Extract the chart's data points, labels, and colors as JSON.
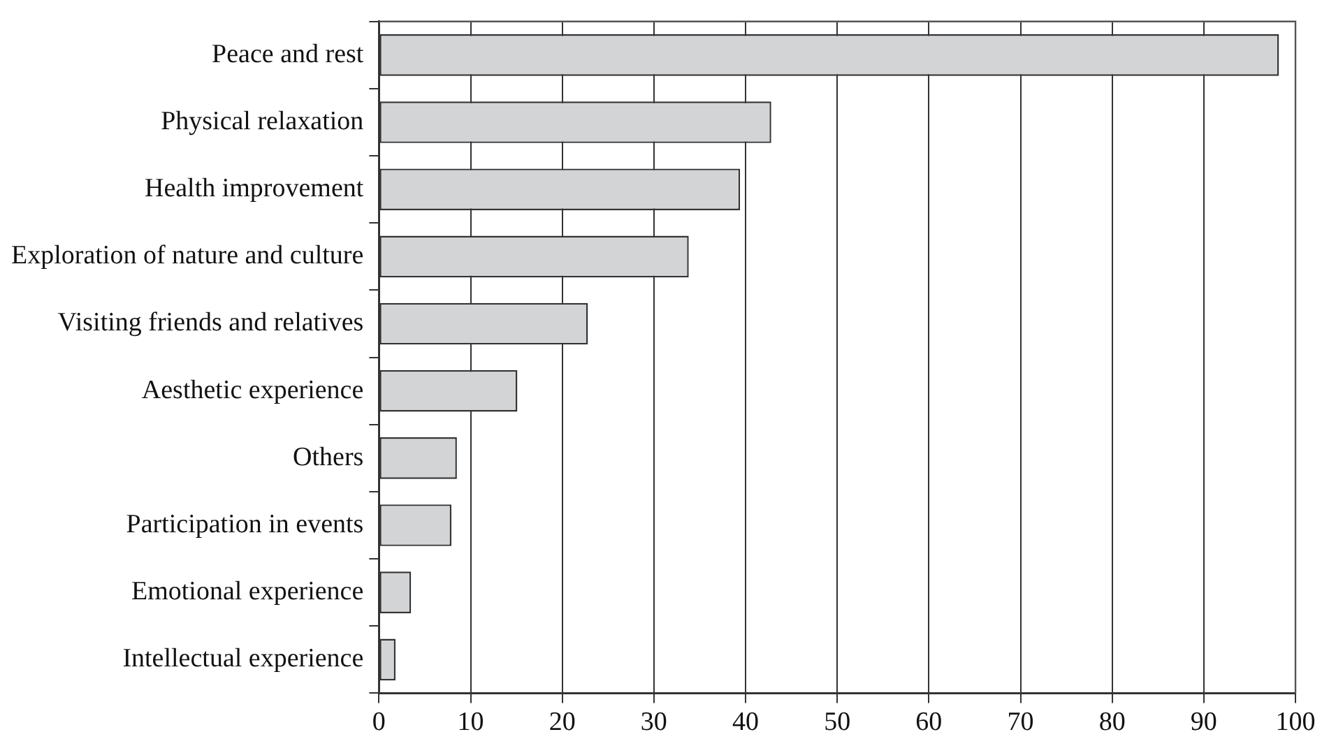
{
  "chart_data": {
    "type": "bar",
    "orientation": "horizontal",
    "categories": [
      "Peace and rest",
      "Physical relaxation",
      "Health improvement",
      "Exploration of nature and culture",
      "Visiting friends and relatives",
      "Aesthetic experience",
      "Others",
      "Participation in events",
      "Emotional experience",
      "Intellectual experience"
    ],
    "values": [
      98.2,
      42.8,
      39.4,
      33.8,
      22.8,
      15.1,
      8.5,
      7.9,
      3.5,
      1.8
    ],
    "color": "#d3d4d6",
    "xlim": [
      0,
      100
    ],
    "xticks": [
      0,
      10,
      20,
      30,
      40,
      50,
      60,
      70,
      80,
      90,
      100
    ],
    "grid": "x",
    "legend": false
  }
}
